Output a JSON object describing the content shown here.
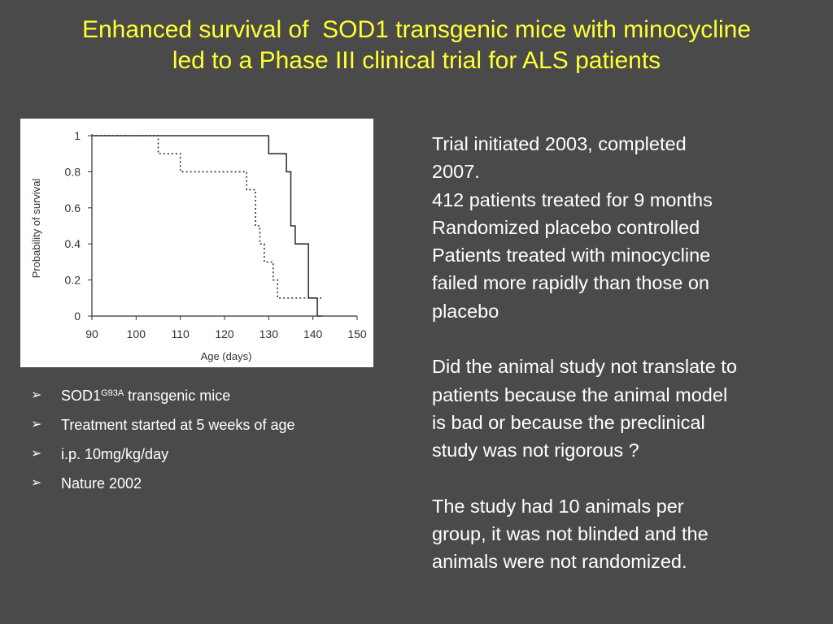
{
  "title": {
    "line1": "Enhanced survival of  SOD1 transgenic mice with minocycline",
    "line2": "led to a Phase III clinical trial for ALS patients"
  },
  "colors": {
    "background": "#4a4a4a",
    "title": "#ffff33",
    "body_text": "#ffffff",
    "chart_background": "#ffffff",
    "chart_ink": "#333333"
  },
  "chart_data": {
    "type": "line",
    "title": "",
    "xlabel": "Age (days)",
    "ylabel": "Probability of survival",
    "xlim": [
      90,
      150
    ],
    "ylim": [
      0,
      1
    ],
    "x_ticks": [
      "90",
      "100",
      "110",
      "120",
      "130",
      "140",
      "150"
    ],
    "y_ticks": [
      "0",
      "0.2",
      "0.4",
      "0.6",
      "0.8",
      "1"
    ],
    "grid": false,
    "legend": "none",
    "step": true,
    "series": [
      {
        "style": "solid",
        "x": [
          90,
          130,
          130,
          134,
          134,
          135,
          135,
          136,
          136,
          139,
          139,
          141,
          141,
          142
        ],
        "y": [
          1,
          1,
          0.9,
          0.9,
          0.8,
          0.8,
          0.5,
          0.5,
          0.4,
          0.4,
          0.1,
          0.1,
          0,
          0
        ]
      },
      {
        "style": "dotted",
        "x": [
          90,
          105,
          105,
          110,
          110,
          125,
          125,
          127,
          127,
          128,
          128,
          129,
          129,
          131,
          131,
          132,
          132,
          142
        ],
        "y": [
          1,
          1,
          0.9,
          0.9,
          0.8,
          0.8,
          0.7,
          0.7,
          0.5,
          0.5,
          0.4,
          0.4,
          0.3,
          0.3,
          0.2,
          0.2,
          0.1,
          0.1
        ]
      }
    ]
  },
  "bullets": {
    "marker": "➢",
    "items": [
      {
        "text": "SOD1",
        "sup": "G93A",
        "after": " transgenic mice"
      },
      {
        "text": "Treatment started at 5 weeks of age"
      },
      {
        "text": "i.p. 10mg/kg/day"
      },
      {
        "text": "Nature 2002"
      }
    ]
  },
  "body": {
    "para1": [
      "Trial initiated 2003, completed",
      "2007.",
      "412 patients treated for 9 months",
      "Randomized placebo controlled",
      "Patients treated with minocycline",
      "failed more rapidly than those on",
      "placebo"
    ],
    "para2": [
      "Did the animal study not translate to",
      "patients because the animal model",
      "is bad or because the preclinical",
      "study was not rigorous ?"
    ],
    "para3": [
      "The study had 10 animals per",
      "group, it was not blinded and the",
      "animals were not randomized."
    ]
  }
}
